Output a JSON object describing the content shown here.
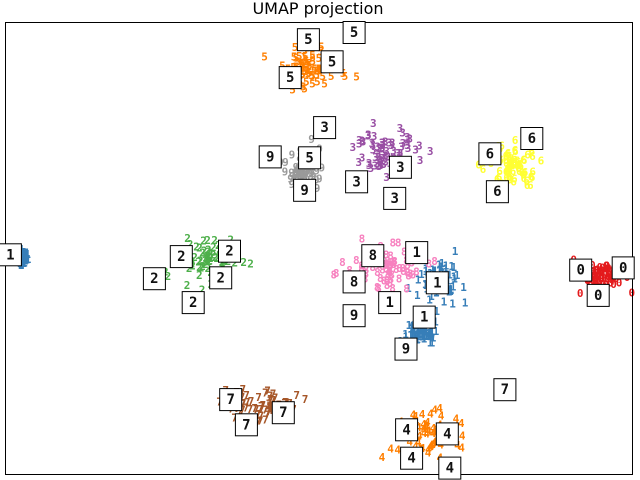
{
  "chart_data": {
    "type": "scatter",
    "title": "UMAP projection",
    "xlabel": "",
    "ylabel": "",
    "xlim": [
      0,
      100
    ],
    "ylim": [
      0,
      100
    ],
    "grid": false,
    "legend": "none",
    "ticks": false,
    "series": [
      {
        "label": "0",
        "color": "#e41a1c",
        "center": [
          95.8,
          43.7
        ],
        "spread": [
          3.2,
          3.2
        ]
      },
      {
        "label": "1",
        "color": "#377eb8",
        "center": [
          68.8,
          42.6
        ],
        "spread": [
          3.2,
          4.2
        ]
      },
      {
        "label": "1",
        "color": "#377eb8",
        "center": [
          66.2,
          31.4
        ],
        "spread": [
          2.0,
          2.1
        ]
      },
      {
        "label": "1",
        "color": "#377eb8",
        "center": [
          2.8,
          48.2
        ],
        "spread": [
          0.6,
          1.2
        ]
      },
      {
        "label": "2",
        "color": "#4daf4a",
        "center": [
          32.0,
          47.5
        ],
        "spread": [
          5.8,
          4.2
        ]
      },
      {
        "label": "3",
        "color": "#984ea3",
        "center": [
          60.9,
          71.0
        ],
        "spread": [
          4.8,
          4.2
        ]
      },
      {
        "label": "4",
        "color": "#ff7f00",
        "center": [
          67.2,
          9.1
        ],
        "spread": [
          5.0,
          5.1
        ]
      },
      {
        "label": "5",
        "color": "#ff7f00",
        "center": [
          49.3,
          90.0
        ],
        "spread": [
          5.0,
          4.3
        ]
      },
      {
        "label": "6",
        "color": "#ffff33",
        "center": [
          81.1,
          68.5
        ],
        "spread": [
          3.5,
          4.3
        ]
      },
      {
        "label": "7",
        "color": "#a65628",
        "center": [
          40.8,
          15.2
        ],
        "spread": [
          5.5,
          3.4
        ]
      },
      {
        "label": "8",
        "color": "#f781bf",
        "center": [
          61.2,
          45.5
        ],
        "spread": [
          5.8,
          4.5
        ]
      },
      {
        "label": "9",
        "color": "#999999",
        "center": [
          47.4,
          67.4
        ],
        "spread": [
          2.5,
          4.2
        ]
      }
    ],
    "annotations": [
      {
        "label": "5",
        "x": 55.6,
        "y": 97.9
      },
      {
        "label": "5",
        "x": 48.3,
        "y": 96.3
      },
      {
        "label": "5",
        "x": 52.1,
        "y": 91.4
      },
      {
        "label": "5",
        "x": 45.4,
        "y": 87.9
      },
      {
        "label": "3",
        "x": 50.9,
        "y": 76.8
      },
      {
        "label": "9",
        "x": 42.2,
        "y": 70.3
      },
      {
        "label": "5",
        "x": 48.5,
        "y": 70.1
      },
      {
        "label": "3",
        "x": 63.0,
        "y": 68.0
      },
      {
        "label": "3",
        "x": 56.0,
        "y": 64.8
      },
      {
        "label": "3",
        "x": 62.1,
        "y": 61.1
      },
      {
        "label": "9",
        "x": 47.7,
        "y": 62.9
      },
      {
        "label": "6",
        "x": 84.0,
        "y": 74.4
      },
      {
        "label": "6",
        "x": 77.3,
        "y": 71.0
      },
      {
        "label": "6",
        "x": 78.5,
        "y": 62.6
      },
      {
        "label": "1",
        "x": 0.7,
        "y": 48.6
      },
      {
        "label": "2",
        "x": 35.7,
        "y": 49.4
      },
      {
        "label": "2",
        "x": 28.0,
        "y": 48.2
      },
      {
        "label": "2",
        "x": 23.7,
        "y": 43.3
      },
      {
        "label": "2",
        "x": 34.3,
        "y": 43.5
      },
      {
        "label": "2",
        "x": 29.9,
        "y": 38.0
      },
      {
        "label": "8",
        "x": 58.6,
        "y": 48.4
      },
      {
        "label": "1",
        "x": 65.6,
        "y": 49.1
      },
      {
        "label": "8",
        "x": 55.6,
        "y": 42.6
      },
      {
        "label": "1",
        "x": 68.9,
        "y": 42.4
      },
      {
        "label": "1",
        "x": 61.3,
        "y": 38.0
      },
      {
        "label": "9",
        "x": 55.6,
        "y": 35.1
      },
      {
        "label": "1",
        "x": 66.8,
        "y": 34.8
      },
      {
        "label": "9",
        "x": 63.9,
        "y": 27.7
      },
      {
        "label": "0",
        "x": 91.8,
        "y": 45.2
      },
      {
        "label": "0",
        "x": 98.6,
        "y": 45.7
      },
      {
        "label": "0",
        "x": 94.6,
        "y": 39.6
      },
      {
        "label": "7",
        "x": 79.7,
        "y": 18.7
      },
      {
        "label": "7",
        "x": 35.9,
        "y": 16.5
      },
      {
        "label": "7",
        "x": 44.3,
        "y": 13.6
      },
      {
        "label": "7",
        "x": 38.4,
        "y": 10.9
      },
      {
        "label": "4",
        "x": 64.0,
        "y": 9.8
      },
      {
        "label": "4",
        "x": 70.5,
        "y": 8.9
      },
      {
        "label": "4",
        "x": 64.8,
        "y": 3.5
      },
      {
        "label": "4",
        "x": 70.9,
        "y": 1.3
      }
    ]
  }
}
